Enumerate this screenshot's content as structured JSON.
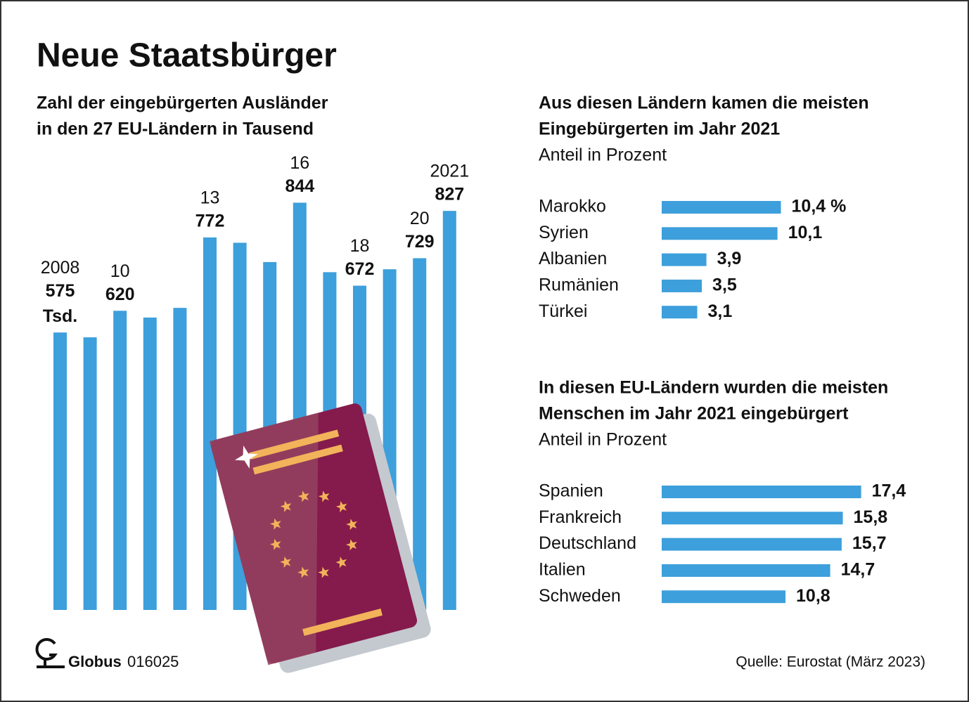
{
  "title": "Neue Staatsbürger",
  "chart_data": [
    {
      "type": "bar",
      "title": [
        "Zahl der eingebürgerten Ausländer",
        "in den 27 EU-Ländern in Tausend"
      ],
      "categories": [
        "2008",
        null,
        "10",
        null,
        null,
        "13",
        null,
        null,
        "16",
        null,
        "18",
        null,
        "20",
        "2021"
      ],
      "values": [
        575,
        565,
        620,
        606,
        626,
        772,
        761,
        721,
        844,
        700,
        672,
        706,
        729,
        827
      ],
      "value_labels": [
        "575",
        null,
        "620",
        null,
        null,
        "772",
        null,
        null,
        "844",
        null,
        "672",
        null,
        "729",
        "827"
      ],
      "unit_label": "Tsd.",
      "color": "#3d9fdb",
      "ylim": [
        0,
        900
      ]
    },
    {
      "type": "barh",
      "title": [
        "Aus diesen Ländern kamen die meisten",
        "Eingebürgerten im Jahr 2021"
      ],
      "subtitle": "Anteil in Prozent",
      "categories": [
        "Marokko",
        "Syrien",
        "Albanien",
        "Rumänien",
        "Türkei"
      ],
      "values": [
        10.4,
        10.1,
        3.9,
        3.5,
        3.1
      ],
      "value_labels": [
        "10,4 %",
        "10,1",
        "3,9",
        "3,5",
        "3,1"
      ],
      "color": "#3d9fdb",
      "xlim": [
        0,
        20
      ]
    },
    {
      "type": "barh",
      "title": [
        "In diesen EU-Ländern wurden die meisten",
        "Menschen im Jahr 2021 eingebürgert"
      ],
      "subtitle": "Anteil in Prozent",
      "categories": [
        "Spanien",
        "Frankreich",
        "Deutschland",
        "Italien",
        "Schweden"
      ],
      "values": [
        17.4,
        15.8,
        15.7,
        14.7,
        10.8
      ],
      "value_labels": [
        "17,4",
        "15,8",
        "15,7",
        "14,7",
        "10,8"
      ],
      "color": "#3d9fdb",
      "xlim": [
        0,
        20
      ]
    }
  ],
  "footer": {
    "brand": "Globus",
    "code": "016025",
    "source": "Quelle: Eurostat (März 2023)"
  }
}
